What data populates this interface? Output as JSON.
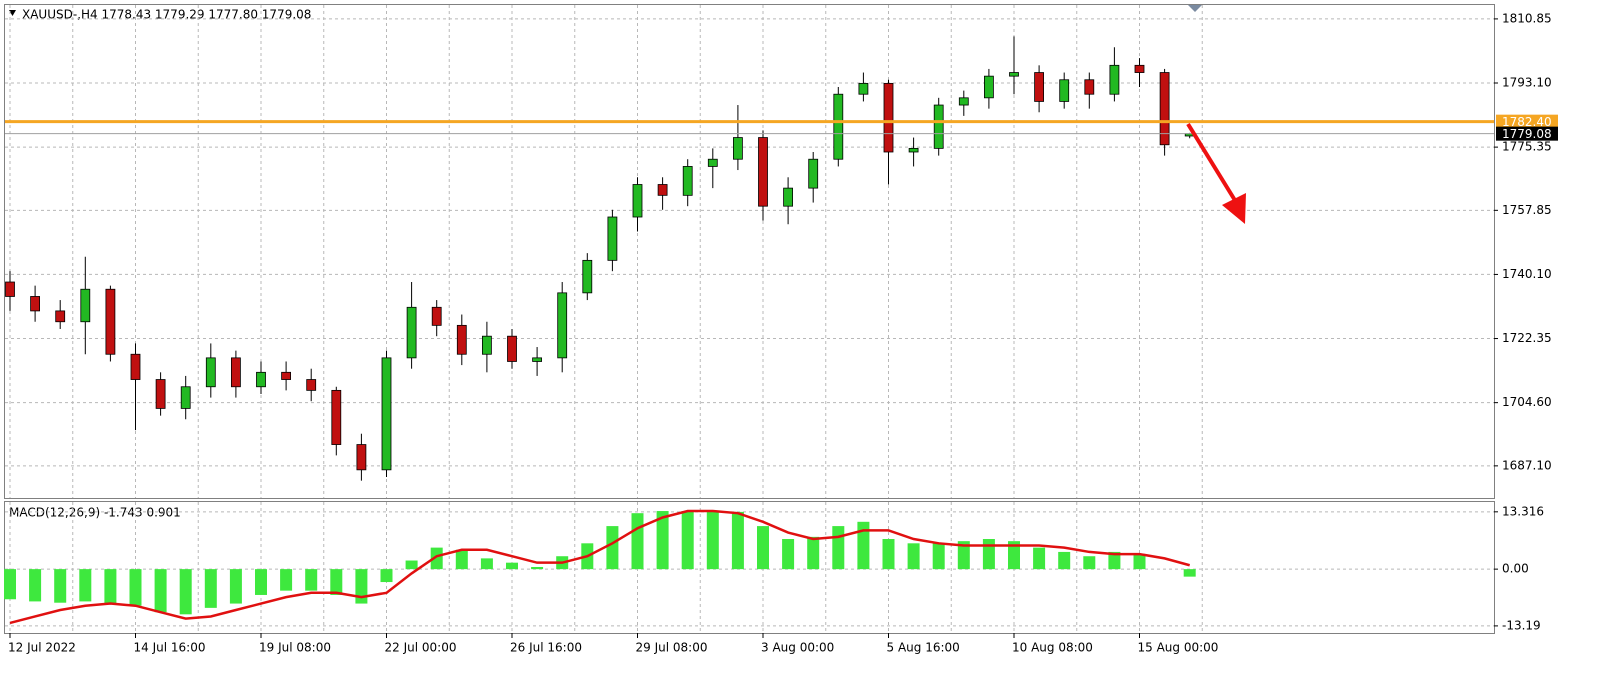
{
  "chart_data": [
    {
      "type": "candlestick",
      "title": "XAUUSD-,H4  1778.43 1779.29 1777.80 1779.08",
      "categories": [
        "12 Jul 2022",
        null,
        null,
        null,
        null,
        "14 Jul 16:00",
        null,
        null,
        null,
        null,
        "19 Jul 08:00",
        null,
        null,
        null,
        null,
        "22 Jul 00:00",
        null,
        null,
        null,
        null,
        "26 Jul 16:00",
        null,
        null,
        null,
        null,
        "29 Jul 08:00",
        null,
        null,
        null,
        null,
        "3 Aug 00:00",
        null,
        null,
        null,
        null,
        "5 Aug 16:00",
        null,
        null,
        null,
        null,
        "10 Aug 08:00",
        null,
        null,
        null,
        null,
        "15 Aug 00:00",
        null,
        null
      ],
      "open": [
        1738,
        1734,
        1730,
        1727,
        1736,
        1718,
        1711,
        1703,
        1709,
        1717,
        1709,
        1713,
        1711,
        1708,
        1693,
        1686,
        1717,
        1731,
        1726,
        1718,
        1723,
        1716,
        1717,
        1735,
        1744,
        1756,
        1765,
        1762,
        1770,
        1772,
        1778,
        1759,
        1764,
        1772,
        1790,
        1793,
        1774,
        1775,
        1787,
        1789,
        1795,
        1796,
        1788,
        1794,
        1790,
        1798,
        1796,
        1778.43
      ],
      "high": [
        1741,
        1737,
        1733,
        1745,
        1737,
        1721,
        1713,
        1712,
        1721,
        1719,
        1716,
        1716,
        1714,
        1709,
        1696,
        1719,
        1738,
        1733,
        1729,
        1727,
        1725,
        1720,
        1738,
        1746,
        1758,
        1767,
        1767,
        1772,
        1775,
        1787,
        1780,
        1767,
        1774,
        1792,
        1796,
        1794,
        1778,
        1789,
        1791,
        1797,
        1806,
        1798,
        1796,
        1796,
        1803,
        1800,
        1797,
        1779.29
      ],
      "low": [
        1730,
        1727,
        1725,
        1718,
        1716,
        1697,
        1701,
        1700,
        1706,
        1706,
        1707,
        1708,
        1705,
        1690,
        1683,
        1684,
        1714,
        1723,
        1715,
        1713,
        1714,
        1712,
        1713,
        1733,
        1741,
        1752,
        1758,
        1759,
        1764,
        1769,
        1755,
        1754,
        1760,
        1770,
        1788,
        1765,
        1770,
        1773,
        1784,
        1786,
        1790,
        1785,
        1786,
        1786,
        1788,
        1792,
        1773,
        1777.8
      ],
      "close": [
        1734,
        1730,
        1727,
        1736,
        1718,
        1711,
        1703,
        1709,
        1717,
        1709,
        1713,
        1711,
        1708,
        1693,
        1686,
        1717,
        1731,
        1726,
        1718,
        1723,
        1716,
        1717,
        1735,
        1744,
        1756,
        1765,
        1762,
        1770,
        1772,
        1778,
        1759,
        1764,
        1772,
        1790,
        1793,
        1774,
        1775,
        1787,
        1789,
        1795,
        1796,
        1788,
        1794,
        1790,
        1798,
        1796,
        1776,
        1779.08
      ],
      "up_color": "#22b922",
      "down_color": "#c01010",
      "ylim": [
        1678.2,
        1814.7
      ],
      "yticks": [
        1810.85,
        {
          "value": 1793.1,
          "label": "1793.10"
        },
        1775.35,
        1757.85,
        {
          "value": 1740.1,
          "label": "1740.10"
        },
        1722.35,
        {
          "value": 1704.6,
          "label": "1704.60"
        },
        {
          "value": 1687.1,
          "label": "1687.10"
        }
      ],
      "grid": true,
      "levels": [
        {
          "value": 1782.4,
          "label": "1782.40",
          "color": "#f5a623"
        },
        {
          "value": 1779.08,
          "label": "1779.08",
          "color": "#000000"
        }
      ]
    },
    {
      "type": "macd",
      "title": "MACD(12,26,9) -1.743 0.901",
      "histogram": {
        "color": "#3ee83e",
        "values": [
          -7,
          -7.5,
          -7.8,
          -7.5,
          -8,
          -8.5,
          -10,
          -10.5,
          -9,
          -8,
          -6,
          -5,
          -5,
          -6,
          -8,
          -3,
          2,
          5,
          4.5,
          2.5,
          1.5,
          0.5,
          3,
          6,
          10,
          13,
          13.5,
          13.5,
          13.5,
          13.3,
          10,
          7,
          7.5,
          10,
          11,
          7,
          6,
          6,
          6.5,
          7,
          6.5,
          5,
          4,
          3,
          4,
          3.5,
          0,
          -1.743
        ]
      },
      "signal": {
        "color": "#e01010",
        "values": [
          -12.5,
          -11,
          -9.5,
          -8.5,
          -8,
          -8.5,
          -10,
          -11.5,
          -11,
          -9.5,
          -8,
          -6.5,
          -5.5,
          -5.5,
          -6.5,
          -5.5,
          -1,
          3,
          4.5,
          4.5,
          3,
          1.5,
          1.5,
          3,
          6,
          9.5,
          12,
          13.5,
          13.5,
          13,
          11,
          8.5,
          7,
          7.5,
          9,
          9,
          7,
          6,
          5.5,
          5.5,
          5.5,
          5.5,
          5,
          4,
          3.5,
          3.5,
          2.5,
          0.901
        ]
      },
      "ylim": [
        -14.84,
        15.6
      ],
      "yticks": [
        13.316,
        {
          "value": 0,
          "label": "0.00"
        },
        -13.19
      ],
      "grid": true
    }
  ]
}
